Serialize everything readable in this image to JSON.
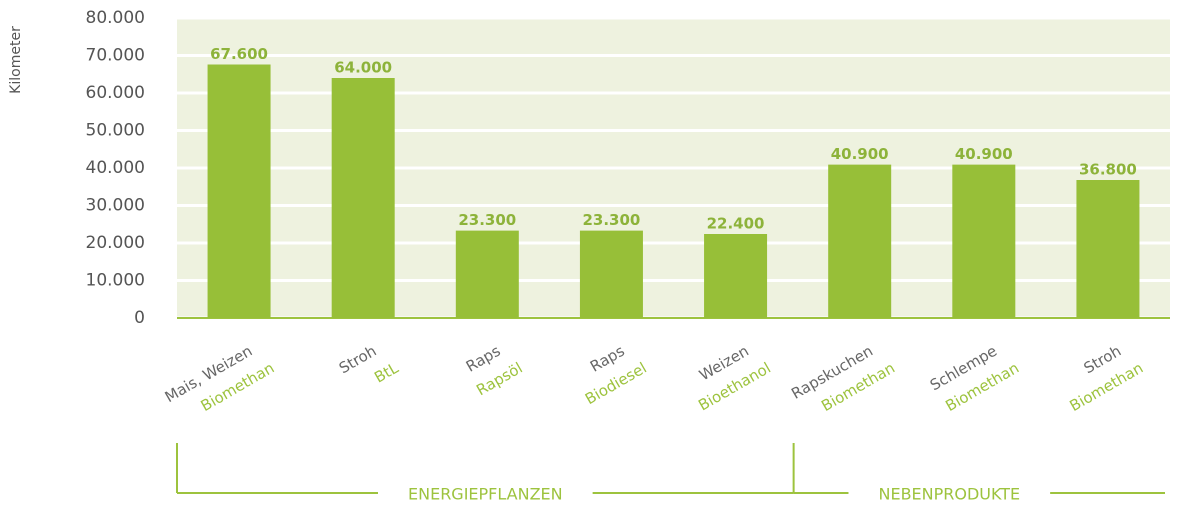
{
  "chart_data": {
    "type": "bar",
    "y_label": "Kilometer",
    "categories": [
      "Mais, Weizen",
      "Stroh",
      "Raps",
      "Raps",
      "Weizen",
      "Rapskuchen",
      "Schlempe",
      "Stroh"
    ],
    "category_sublabels": [
      "Biomethan",
      "BtL",
      "Rapsöl",
      "Biodiesel",
      "Bioethanol",
      "Biomethan",
      "Biomethan",
      "Biomethan"
    ],
    "values": [
      67600,
      64000,
      23300,
      23300,
      22400,
      40900,
      40900,
      36800
    ],
    "value_labels": [
      "67.600",
      "64.000",
      "23.300",
      "23.300",
      "22.400",
      "40.900",
      "40.900",
      "36.800"
    ],
    "color": "#97bf38",
    "ylim": [
      0,
      80000
    ],
    "yticks": [
      0,
      {
        "value": 10000,
        "label": "10.000"
      },
      {
        "value": 20000,
        "label": "20.000"
      },
      {
        "value": 30000,
        "label": "30.000"
      },
      {
        "value": 40000,
        "label": "40.000"
      },
      {
        "value": 50000,
        "label": "50.000"
      },
      {
        "value": 60000,
        "label": "60.000"
      },
      {
        "value": 70000,
        "label": "70.000"
      },
      {
        "value": 80000,
        "label": "80.000"
      }
    ],
    "grid": true,
    "groups": [
      {
        "label": "ENERGIEPFLANZEN",
        "count": 5
      },
      {
        "label": "NEBENPRODUKTE",
        "count": 3
      }
    ]
  }
}
